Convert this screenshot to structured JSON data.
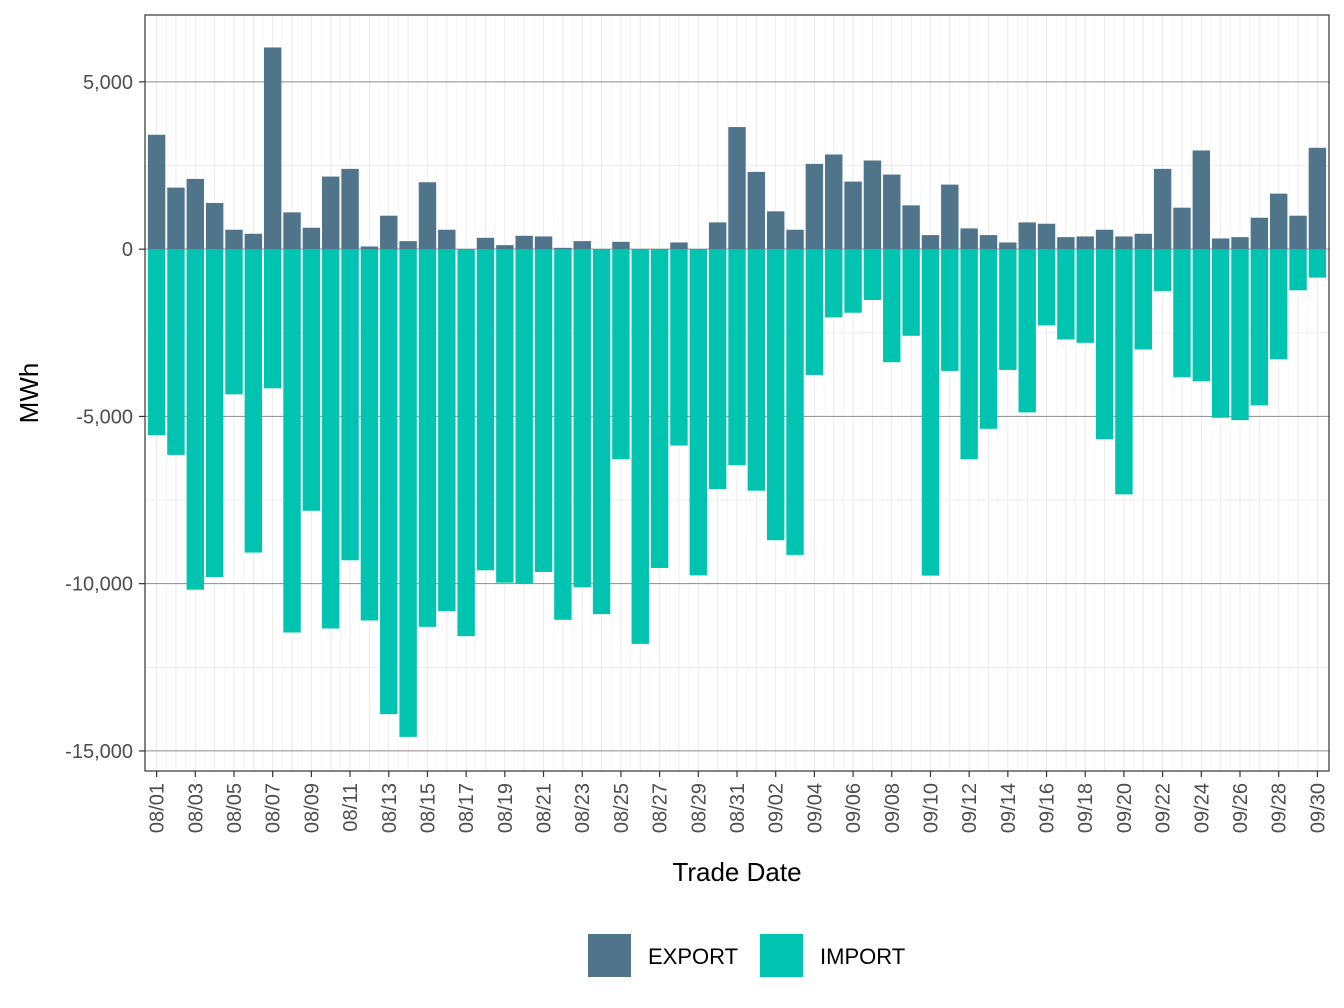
{
  "chart_data": {
    "type": "bar",
    "stacked": true,
    "xlabel": "Trade Date",
    "ylabel": "MWh",
    "ylim": [
      -15600,
      7000
    ],
    "yticks": [
      5000,
      0,
      -5000,
      -10000,
      -15000
    ],
    "ytick_labels": [
      "5,000",
      "0",
      "-5,000",
      "-10,000",
      "-15,000"
    ],
    "grid": true,
    "legend_position": "bottom",
    "categories": [
      "08/01",
      "08/02",
      "08/03",
      "08/04",
      "08/05",
      "08/06",
      "08/07",
      "08/08",
      "08/09",
      "08/10",
      "08/11",
      "08/12",
      "08/13",
      "08/14",
      "08/15",
      "08/16",
      "08/17",
      "08/18",
      "08/19",
      "08/20",
      "08/21",
      "08/22",
      "08/23",
      "08/24",
      "08/25",
      "08/26",
      "08/27",
      "08/28",
      "08/29",
      "08/30",
      "08/31",
      "09/01",
      "09/02",
      "09/03",
      "09/04",
      "09/05",
      "09/06",
      "09/07",
      "09/08",
      "09/09",
      "09/10",
      "09/11",
      "09/12",
      "09/13",
      "09/14",
      "09/15",
      "09/16",
      "09/17",
      "09/18",
      "09/19",
      "09/20",
      "09/21",
      "09/22",
      "09/23",
      "09/24",
      "09/25",
      "09/26",
      "09/27",
      "09/28",
      "09/29",
      "09/30"
    ],
    "tick_labels": [
      "08/01",
      "08/03",
      "08/05",
      "08/07",
      "08/09",
      "08/11",
      "08/13",
      "08/15",
      "08/17",
      "08/19",
      "08/21",
      "08/23",
      "08/25",
      "08/27",
      "08/29",
      "08/31",
      "09/02",
      "09/04",
      "09/06",
      "09/08",
      "09/10",
      "09/12",
      "09/14",
      "09/16",
      "09/18",
      "09/20",
      "09/22",
      "09/24",
      "09/26",
      "09/28",
      "09/30"
    ],
    "series": [
      {
        "name": "EXPORT",
        "color": "#50748a",
        "values": [
          3420,
          1840,
          2100,
          1380,
          580,
          460,
          6030,
          1100,
          640,
          2170,
          2400,
          80,
          1000,
          240,
          2000,
          580,
          0,
          340,
          120,
          400,
          380,
          40,
          240,
          0,
          220,
          0,
          0,
          200,
          0,
          800,
          3650,
          2310,
          1130,
          580,
          2550,
          2830,
          2020,
          2650,
          2230,
          1310,
          420,
          1930,
          620,
          420,
          200,
          800,
          760,
          360,
          380,
          580,
          380,
          460,
          2400,
          1240,
          2950,
          320,
          360,
          940,
          1660,
          1000,
          3030
        ]
      },
      {
        "name": "IMPORT",
        "color": "#00c4b0",
        "values": [
          -5560,
          -6150,
          -10180,
          -9800,
          -4340,
          -9070,
          -4160,
          -11460,
          -7820,
          -11340,
          -9300,
          -11100,
          -13900,
          -14580,
          -11290,
          -10820,
          -11570,
          -9600,
          -9970,
          -10010,
          -9650,
          -11080,
          -10110,
          -10910,
          -6280,
          -11800,
          -9530,
          -5870,
          -9750,
          -7170,
          -6460,
          -7220,
          -8700,
          -9140,
          -3760,
          -2040,
          -1900,
          -1520,
          -3380,
          -2590,
          -9760,
          -3640,
          -6280,
          -5370,
          -3610,
          -4880,
          -2280,
          -2700,
          -2800,
          -5680,
          -7330,
          -3000,
          -1250,
          -3830,
          -3950,
          -5040,
          -5110,
          -4670,
          -3290,
          -1230,
          -850
        ]
      }
    ]
  }
}
